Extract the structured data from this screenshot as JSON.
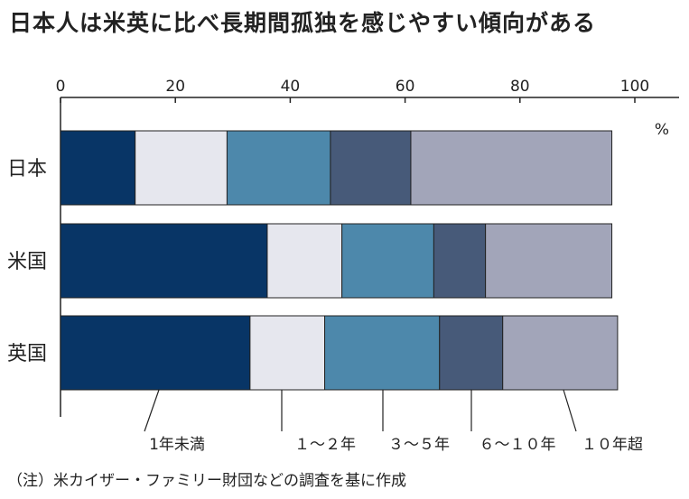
{
  "title": "日本人は米英に比べ長期間孤独を感じやすい傾向がある",
  "footnote": "（注）米カイザー・ファミリー財団などの調査を基に作成",
  "chart_data": {
    "type": "bar",
    "orientation": "horizontal",
    "stacked": true,
    "categories": [
      "日本",
      "米国",
      "英国"
    ],
    "unit": "%",
    "xlim": [
      0,
      100
    ],
    "xticks": [
      "0",
      "20",
      "40",
      "60",
      "80",
      "100"
    ],
    "grid": false,
    "legend_position": "bottom",
    "series": [
      {
        "name": "1年未満",
        "color": "#083566",
        "values": [
          13,
          36,
          33
        ]
      },
      {
        "name": "１～２年",
        "color": "#e6e7ee",
        "values": [
          16,
          13,
          13
        ]
      },
      {
        "name": "３～５年",
        "color": "#4d88ab",
        "values": [
          18,
          16,
          20
        ]
      },
      {
        "name": "６～１０年",
        "color": "#475a79",
        "values": [
          14,
          9,
          11
        ]
      },
      {
        "name": "１０年超",
        "color": "#a2a5b9",
        "values": [
          35,
          22,
          20
        ]
      }
    ]
  }
}
